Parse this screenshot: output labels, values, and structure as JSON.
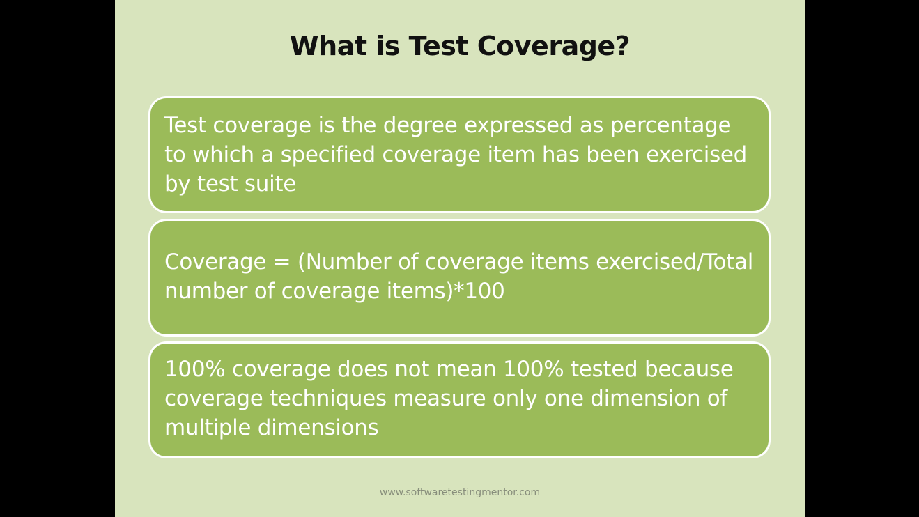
{
  "slide": {
    "title": "What is Test Coverage?",
    "boxes": [
      {
        "text": "Test coverage is the degree expressed as percentage to which a specified coverage item has been exercised by test suite"
      },
      {
        "text": "Coverage = (Number of coverage items exercised/Total number of coverage items)*100"
      },
      {
        "text": "100% coverage does not mean 100% tested because coverage techniques measure only one dimension of multiple dimensions"
      }
    ],
    "footer": "www.softwaretestingmentor.com"
  },
  "colors": {
    "background": "#000000",
    "slide_background": "#d8e4bd",
    "box_fill": "#9bbb59",
    "box_border": "#ffffff",
    "title_text": "#111111",
    "box_text": "#ffffff"
  }
}
